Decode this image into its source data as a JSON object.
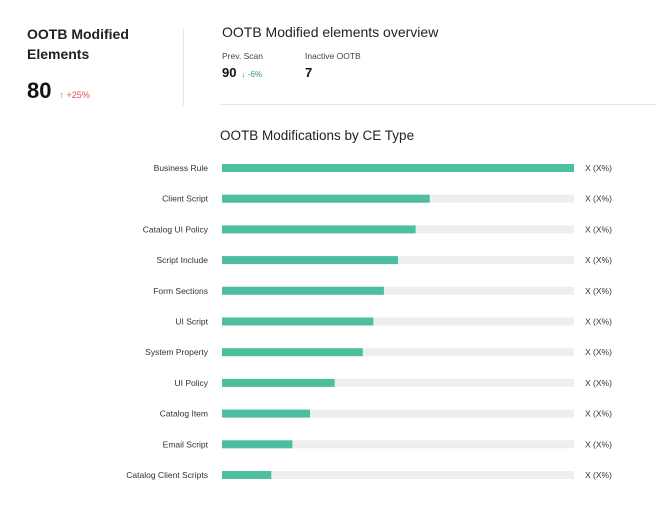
{
  "kpi": {
    "title": "OOTB Modified Elements",
    "value": "80",
    "delta": "+25%",
    "delta_icon": "arrow-up-icon",
    "delta_color": "#d9534f"
  },
  "overview": {
    "title": "OOTB Modified elements overview",
    "prev_scan": {
      "label": "Prev. Scan",
      "value": "90",
      "delta": "-6%",
      "delta_icon": "arrow-down-icon",
      "delta_color": "#2e9e58"
    },
    "inactive": {
      "label": "Inactive OOTB",
      "value": "7"
    }
  },
  "chart_data": {
    "type": "bar",
    "orientation": "horizontal",
    "title": "OOTB Modifications by CE Type",
    "categories": [
      "Business Rule",
      "Client Script",
      "Catalog UI Policy",
      "Script Include",
      "Form Sections",
      "UI Script",
      "System Property",
      "UI Policy",
      "Catalog Item",
      "Email Script",
      "Catalog Client Scripts"
    ],
    "values": [
      100,
      59,
      55,
      50,
      46,
      43,
      40,
      32,
      25,
      20,
      14
    ],
    "value_labels": [
      "X (X%)",
      "X (X%)",
      "X (X%)",
      "X (X%)",
      "X (X%)",
      "X (X%)",
      "X (X%)",
      "X (X%)",
      "X (X%)",
      "X (X%)",
      "X (X%)"
    ],
    "xlim": [
      0,
      100
    ],
    "bar_color": "#4dbf9f",
    "track_color": "#eeeeee",
    "grid": false,
    "legend": "none"
  }
}
